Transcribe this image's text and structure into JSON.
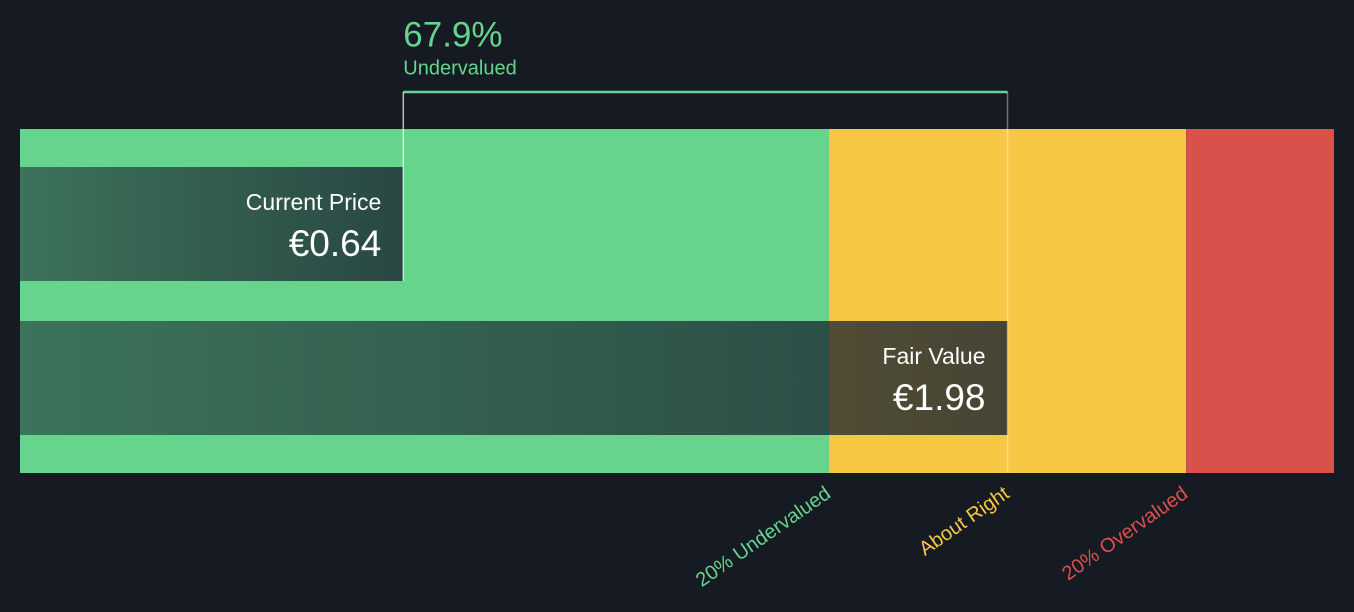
{
  "chart_data": {
    "type": "valuation",
    "discount": {
      "value": 67.9,
      "label": "67.9%"
    },
    "discount_text": "Undervalued",
    "bars": [
      {
        "name": "Current Price",
        "value": 0.64,
        "value_label": "€0.64"
      },
      {
        "name": "Fair Value",
        "value": 1.98,
        "value_label": "€1.98"
      }
    ],
    "thresholds": [
      {
        "value": 1.584,
        "label": "20% Undervalued",
        "color": "#66d48d"
      },
      {
        "value": 1.98,
        "label": "About Right",
        "color": "#f7c744"
      },
      {
        "value": 2.376,
        "label": "20% Overvalued",
        "color": "#d9514b"
      }
    ],
    "xlim": [
      -0.21,
      2.704
    ]
  }
}
